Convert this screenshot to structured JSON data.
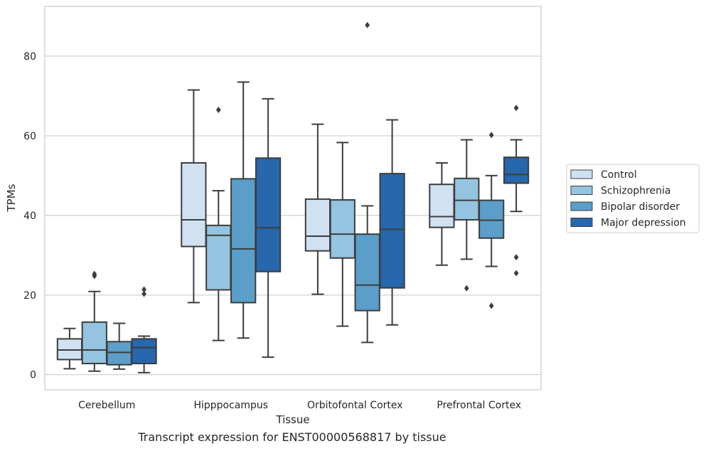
{
  "caption": "Transcript expression for ENST00000568817 by tissue",
  "chart_data": {
    "type": "box",
    "xlabel": "Tissue",
    "ylabel": "TPMs",
    "ylim": [
      -3.8,
      92.5
    ],
    "yticks": [
      0,
      20,
      40,
      60,
      80
    ],
    "grid": true,
    "legend_position": "right",
    "categories": [
      "Cerebellum",
      "Hipppocampus",
      "Orbitofontal Cortex",
      "Prefrontal Cortex"
    ],
    "series": [
      {
        "name": "Control",
        "color": "#d0e1f2",
        "boxes": [
          {
            "whisker_low": 1.5,
            "q1": 3.8,
            "median": 6.2,
            "q3": 9.0,
            "whisker_high": 11.6,
            "outliers": []
          },
          {
            "whisker_low": 18.1,
            "q1": 32.2,
            "median": 38.9,
            "q3": 53.2,
            "whisker_high": 71.5,
            "outliers": []
          },
          {
            "whisker_low": 20.2,
            "q1": 31.1,
            "median": 34.8,
            "q3": 44.1,
            "whisker_high": 62.9,
            "outliers": []
          },
          {
            "whisker_low": 27.5,
            "q1": 37.0,
            "median": 39.7,
            "q3": 47.8,
            "whisker_high": 53.2,
            "outliers": []
          }
        ]
      },
      {
        "name": "Schizophrenia",
        "color": "#94c4df",
        "boxes": [
          {
            "whisker_low": 0.9,
            "q1": 2.8,
            "median": 6.2,
            "q3": 13.2,
            "whisker_high": 20.9,
            "outliers": [
              25.3,
              24.8
            ]
          },
          {
            "whisker_low": 8.6,
            "q1": 21.3,
            "median": 35.0,
            "q3": 37.5,
            "whisker_high": 46.2,
            "outliers": [
              66.5
            ]
          },
          {
            "whisker_low": 12.2,
            "q1": 29.3,
            "median": 35.3,
            "q3": 43.9,
            "whisker_high": 58.3,
            "outliers": []
          },
          {
            "whisker_low": 29.0,
            "q1": 38.9,
            "median": 43.8,
            "q3": 49.3,
            "whisker_high": 59.0,
            "outliers": [
              21.7
            ]
          }
        ]
      },
      {
        "name": "Bipolar disorder",
        "color": "#5a9ec9",
        "boxes": [
          {
            "whisker_low": 1.4,
            "q1": 2.5,
            "median": 5.6,
            "q3": 8.3,
            "whisker_high": 12.9,
            "outliers": []
          },
          {
            "whisker_low": 9.2,
            "q1": 18.1,
            "median": 31.6,
            "q3": 49.2,
            "whisker_high": 73.5,
            "outliers": []
          },
          {
            "whisker_low": 8.1,
            "q1": 16.1,
            "median": 22.5,
            "q3": 35.3,
            "whisker_high": 42.4,
            "outliers": [
              87.8
            ]
          },
          {
            "whisker_low": 27.2,
            "q1": 34.3,
            "median": 38.8,
            "q3": 43.8,
            "whisker_high": 50.0,
            "outliers": [
              60.2,
              17.3
            ]
          }
        ]
      },
      {
        "name": "Major depression",
        "color": "#2767ab",
        "boxes": [
          {
            "whisker_low": 0.5,
            "q1": 2.8,
            "median": 6.8,
            "q3": 9.0,
            "whisker_high": 9.7,
            "outliers": [
              21.4,
              20.3
            ]
          },
          {
            "whisker_low": 4.4,
            "q1": 25.9,
            "median": 36.9,
            "q3": 54.4,
            "whisker_high": 69.3,
            "outliers": []
          },
          {
            "whisker_low": 12.5,
            "q1": 21.8,
            "median": 36.5,
            "q3": 50.5,
            "whisker_high": 64.0,
            "outliers": []
          },
          {
            "whisker_low": 41.0,
            "q1": 48.1,
            "median": 50.3,
            "q3": 54.6,
            "whisker_high": 59.0,
            "outliers": [
              67.0,
              29.5,
              25.5
            ]
          }
        ]
      }
    ]
  }
}
